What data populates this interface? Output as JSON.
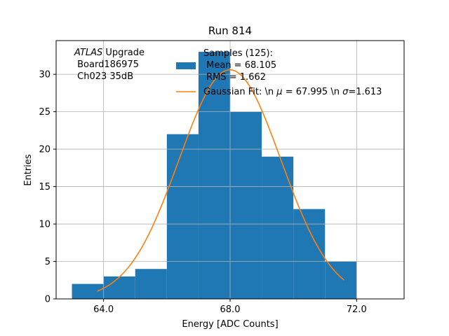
{
  "chart_data": {
    "type": "bar",
    "title": "Run 814",
    "xlabel": "Energy [ADC Counts]",
    "ylabel": "Entries",
    "xlim": [
      62.5,
      73.5
    ],
    "ylim": [
      0,
      34.5
    ],
    "grid": true,
    "x_ticks": [
      64.0,
      68.0,
      72.0
    ],
    "x_tick_labels": [
      "64.0",
      "68.0",
      "72.0"
    ],
    "y_ticks": [
      0,
      5,
      10,
      15,
      20,
      25,
      30
    ],
    "y_tick_labels": [
      "0",
      "5",
      "10",
      "15",
      "20",
      "25",
      "30"
    ],
    "bin_edges": [
      63,
      64,
      65,
      66,
      67,
      68,
      69,
      70,
      71,
      72
    ],
    "counts": [
      2,
      3,
      4,
      22,
      33,
      25,
      19,
      12,
      5
    ],
    "bar_color": "#1f77b4",
    "fit": {
      "name": "Gaussian Fit",
      "mu": 67.995,
      "sigma": 1.613,
      "amplitude": 30.6,
      "x_range": [
        63.8,
        71.6
      ],
      "color": "#ff7f0e"
    },
    "annotation": {
      "italic": "ATLAS",
      "rest": " Upgrade",
      "line2": " Board186975",
      "line3": " Ch023 35dB"
    },
    "legend": {
      "position": "top-right",
      "samples_line1": "Samples (125):",
      "samples_line2": " Mean = 68.105",
      "samples_line3": " RMS = 1.662",
      "fit_label_prefix": "Gaussian Fit: \\n ",
      "fit_mu_symbol": "μ",
      "fit_mu_value": " = 67.995 \\n ",
      "fit_sigma_symbol": "σ",
      "fit_sigma_value": "=1.613"
    }
  }
}
